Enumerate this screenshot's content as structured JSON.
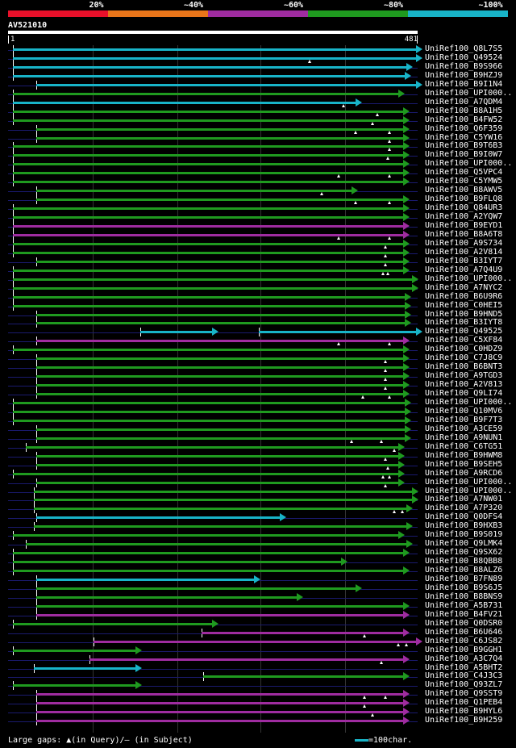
{
  "legend": {
    "segments": [
      {
        "label": "20%",
        "color": "#e8102a"
      },
      {
        "label": "~40%",
        "color": "#e8751a"
      },
      {
        "label": "~60%",
        "color": "#9f2ca0"
      },
      {
        "label": "~80%",
        "color": "#1f9a1f"
      },
      {
        "label": "~100%",
        "color": "#18b4c8"
      }
    ]
  },
  "query": {
    "name": "AV521010",
    "start_label": "1",
    "end_label": "481",
    "length": 481
  },
  "footer": {
    "gaps_text": "Large gaps: ▲(in Query)/– (in Subject)",
    "scale_text": "=100char."
  },
  "hits": [
    {
      "name": "UniRef100_Q8L7S5",
      "color": "#18b4c8",
      "segs": [
        [
          5,
          481
        ]
      ],
      "gaps": [],
      "arrow": true
    },
    {
      "name": "UniRef100_Q49524",
      "color": "#18b4c8",
      "segs": [
        [
          5,
          481
        ]
      ],
      "gaps": [
        355
      ],
      "arrow": true
    },
    {
      "name": "UniRef100_B9S966",
      "color": "#18b4c8",
      "segs": [
        [
          5,
          470
        ]
      ],
      "gaps": [],
      "arrow": true
    },
    {
      "name": "UniRef100_B9HZJ9",
      "color": "#18b4c8",
      "segs": [
        [
          5,
          468
        ]
      ],
      "gaps": [],
      "arrow": true
    },
    {
      "name": "UniRef100_B9I1N4",
      "color": "#18b4c8",
      "segs": [
        [
          32,
          481
        ]
      ],
      "gaps": [],
      "arrow": true
    },
    {
      "name": "UniRef100_UPI000..",
      "color": "#1f9a1f",
      "segs": [
        [
          5,
          460
        ]
      ],
      "gaps": [],
      "arrow": true
    },
    {
      "name": "UniRef100_A7QDM4",
      "color": "#18b4c8",
      "segs": [
        [
          5,
          410
        ]
      ],
      "gaps": [
        395
      ],
      "arrow": true
    },
    {
      "name": "UniRef100_B8A1H5",
      "color": "#1f9a1f",
      "segs": [
        [
          5,
          466
        ]
      ],
      "gaps": [
        435
      ],
      "arrow": true
    },
    {
      "name": "UniRef100_B4FW52",
      "color": "#1f9a1f",
      "segs": [
        [
          5,
          466
        ]
      ],
      "gaps": [
        430
      ],
      "arrow": true
    },
    {
      "name": "UniRef100_Q6F359",
      "color": "#1f9a1f",
      "segs": [
        [
          32,
          466
        ]
      ],
      "gaps": [
        410,
        450
      ],
      "arrow": true
    },
    {
      "name": "UniRef100_C5YW16",
      "color": "#1f9a1f",
      "segs": [
        [
          32,
          466
        ]
      ],
      "gaps": [
        450
      ],
      "arrow": true
    },
    {
      "name": "UniRef100_B9T6B3",
      "color": "#1f9a1f",
      "segs": [
        [
          5,
          466
        ]
      ],
      "gaps": [
        450
      ],
      "arrow": true
    },
    {
      "name": "UniRef100_B9I0W7",
      "color": "#1f9a1f",
      "segs": [
        [
          5,
          466
        ]
      ],
      "gaps": [
        448
      ],
      "arrow": true
    },
    {
      "name": "UniRef100_UPI000..",
      "color": "#1f9a1f",
      "segs": [
        [
          5,
          466
        ]
      ],
      "gaps": [],
      "arrow": true
    },
    {
      "name": "UniRef100_Q5VPC4",
      "color": "#1f9a1f",
      "segs": [
        [
          5,
          466
        ]
      ],
      "gaps": [
        390,
        450
      ],
      "arrow": true
    },
    {
      "name": "UniRef100_C5YMW5",
      "color": "#1f9a1f",
      "segs": [
        [
          5,
          466
        ]
      ],
      "gaps": [],
      "arrow": true
    },
    {
      "name": "UniRef100_B8AWV5",
      "color": "#1f9a1f",
      "segs": [
        [
          32,
          405
        ]
      ],
      "gaps": [
        370
      ],
      "arrow": true
    },
    {
      "name": "UniRef100_B9FLQ8",
      "color": "#1f9a1f",
      "segs": [
        [
          32,
          466
        ]
      ],
      "gaps": [
        410,
        450
      ],
      "arrow": true
    },
    {
      "name": "UniRef100_Q84UR3",
      "color": "#1f9a1f",
      "segs": [
        [
          5,
          466
        ]
      ],
      "gaps": [],
      "arrow": true
    },
    {
      "name": "UniRef100_A2YQW7",
      "color": "#1f9a1f",
      "segs": [
        [
          5,
          466
        ]
      ],
      "gaps": [],
      "arrow": true
    },
    {
      "name": "UniRef100_B9EYD1",
      "color": "#9f2ca0",
      "segs": [
        [
          5,
          466
        ]
      ],
      "gaps": [],
      "arrow": true
    },
    {
      "name": "UniRef100_B8A6T8",
      "color": "#9f2ca0",
      "segs": [
        [
          5,
          466
        ]
      ],
      "gaps": [
        390,
        450
      ],
      "arrow": true
    },
    {
      "name": "UniRef100_A9S734",
      "color": "#1f9a1f",
      "segs": [
        [
          5,
          466
        ]
      ],
      "gaps": [
        445
      ],
      "arrow": true
    },
    {
      "name": "UniRef100_A2V814",
      "color": "#1f9a1f",
      "segs": [
        [
          5,
          466
        ]
      ],
      "gaps": [
        445
      ],
      "arrow": true
    },
    {
      "name": "UniRef100_B3IYT7",
      "color": "#1f9a1f",
      "segs": [
        [
          32,
          466
        ]
      ],
      "gaps": [
        445
      ],
      "arrow": true
    },
    {
      "name": "UniRef100_A7Q4U9",
      "color": "#1f9a1f",
      "segs": [
        [
          5,
          466
        ]
      ],
      "gaps": [
        442,
        448
      ],
      "arrow": true
    },
    {
      "name": "UniRef100_UPI000..",
      "color": "#1f9a1f",
      "segs": [
        [
          5,
          476
        ]
      ],
      "gaps": [],
      "arrow": true
    },
    {
      "name": "UniRef100_A7NYC2",
      "color": "#1f9a1f",
      "segs": [
        [
          5,
          476
        ]
      ],
      "gaps": [],
      "arrow": true
    },
    {
      "name": "UniRef100_B6U9R6",
      "color": "#1f9a1f",
      "segs": [
        [
          5,
          468
        ]
      ],
      "gaps": [],
      "arrow": true
    },
    {
      "name": "UniRef100_C0HEI5",
      "color": "#1f9a1f",
      "segs": [
        [
          5,
          468
        ]
      ],
      "gaps": [],
      "arrow": true
    },
    {
      "name": "UniRef100_B9HND5",
      "color": "#1f9a1f",
      "segs": [
        [
          32,
          468
        ]
      ],
      "gaps": [],
      "arrow": true
    },
    {
      "name": "UniRef100_B3IYT8",
      "color": "#1f9a1f",
      "segs": [
        [
          32,
          468
        ]
      ],
      "gaps": [],
      "arrow": true
    },
    {
      "name": "UniRef100_Q49525",
      "color": "#18b4c8",
      "segs": [
        [
          155,
          240
        ],
        [
          295,
          481
        ]
      ],
      "gaps": [],
      "arrow": true
    },
    {
      "name": "UniRef100_C5XF84",
      "color": "#9f2ca0",
      "segs": [
        [
          32,
          466
        ]
      ],
      "gaps": [
        390,
        450
      ],
      "arrow": true
    },
    {
      "name": "UniRef100_C0HDZ9",
      "color": "#1f9a1f",
      "segs": [
        [
          5,
          466
        ]
      ],
      "gaps": [],
      "arrow": true
    },
    {
      "name": "UniRef100_C7J8C9",
      "color": "#1f9a1f",
      "segs": [
        [
          32,
          466
        ]
      ],
      "gaps": [
        445
      ],
      "arrow": true
    },
    {
      "name": "UniRef100_B6BNT3",
      "color": "#1f9a1f",
      "segs": [
        [
          32,
          466
        ]
      ],
      "gaps": [
        445
      ],
      "arrow": true
    },
    {
      "name": "UniRef100_A9TGD3",
      "color": "#1f9a1f",
      "segs": [
        [
          32,
          466
        ]
      ],
      "gaps": [
        445
      ],
      "arrow": true
    },
    {
      "name": "UniRef100_A2V813",
      "color": "#1f9a1f",
      "segs": [
        [
          32,
          466
        ]
      ],
      "gaps": [
        445
      ],
      "arrow": true
    },
    {
      "name": "UniRef100_Q9LI74",
      "color": "#1f9a1f",
      "segs": [
        [
          32,
          466
        ]
      ],
      "gaps": [
        418,
        450
      ],
      "arrow": true
    },
    {
      "name": "UniRef100_UPI000..",
      "color": "#1f9a1f",
      "segs": [
        [
          5,
          468
        ]
      ],
      "gaps": [],
      "arrow": true
    },
    {
      "name": "UniRef100_Q10MV6",
      "color": "#1f9a1f",
      "segs": [
        [
          5,
          468
        ]
      ],
      "gaps": [],
      "arrow": true
    },
    {
      "name": "UniRef100_B9F7T3",
      "color": "#1f9a1f",
      "segs": [
        [
          5,
          468
        ]
      ],
      "gaps": [],
      "arrow": true
    },
    {
      "name": "UniRef100_A3CE59",
      "color": "#1f9a1f",
      "segs": [
        [
          32,
          468
        ]
      ],
      "gaps": [],
      "arrow": true
    },
    {
      "name": "UniRef100_A9NUN1",
      "color": "#1f9a1f",
      "segs": [
        [
          32,
          468
        ]
      ],
      "gaps": [
        405,
        440
      ],
      "arrow": true
    },
    {
      "name": "UniRef100_C6TG51",
      "color": "#1f9a1f",
      "segs": [
        [
          20,
          460
        ]
      ],
      "gaps": [
        455
      ],
      "arrow": true
    },
    {
      "name": "UniRef100_B9HWM8",
      "color": "#1f9a1f",
      "segs": [
        [
          32,
          460
        ]
      ],
      "gaps": [
        445
      ],
      "arrow": true
    },
    {
      "name": "UniRef100_B9SEH5",
      "color": "#1f9a1f",
      "segs": [
        [
          32,
          460
        ]
      ],
      "gaps": [
        448
      ],
      "arrow": true
    },
    {
      "name": "UniRef100_A9RCD6",
      "color": "#1f9a1f",
      "segs": [
        [
          5,
          460
        ]
      ],
      "gaps": [
        442,
        450
      ],
      "arrow": true
    },
    {
      "name": "UniRef100_UPI000..",
      "color": "#1f9a1f",
      "segs": [
        [
          32,
          460
        ]
      ],
      "gaps": [
        445
      ],
      "arrow": true
    },
    {
      "name": "UniRef100_UPI000..",
      "color": "#1f9a1f",
      "segs": [
        [
          30,
          476
        ]
      ],
      "gaps": [],
      "arrow": true
    },
    {
      "name": "UniRef100_A7NW01",
      "color": "#1f9a1f",
      "segs": [
        [
          30,
          476
        ]
      ],
      "gaps": [],
      "arrow": true
    },
    {
      "name": "UniRef100_A7P320",
      "color": "#1f9a1f",
      "segs": [
        [
          30,
          470
        ]
      ],
      "gaps": [
        455,
        465
      ],
      "arrow": true
    },
    {
      "name": "UniRef100_Q0DFS4",
      "color": "#18b4c8",
      "segs": [
        [
          32,
          320
        ]
      ],
      "gaps": [],
      "arrow": true
    },
    {
      "name": "UniRef100_B9HXB3",
      "color": "#1f9a1f",
      "segs": [
        [
          30,
          470
        ]
      ],
      "gaps": [],
      "arrow": true
    },
    {
      "name": "UniRef100_B9S019",
      "color": "#1f9a1f",
      "segs": [
        [
          5,
          460
        ]
      ],
      "gaps": [],
      "arrow": true
    },
    {
      "name": "UniRef100_Q9LMK4",
      "color": "#1f9a1f",
      "segs": [
        [
          20,
          470
        ]
      ],
      "gaps": [],
      "arrow": true
    },
    {
      "name": "UniRef100_Q9SX62",
      "color": "#1f9a1f",
      "segs": [
        [
          5,
          466
        ]
      ],
      "gaps": [],
      "arrow": true
    },
    {
      "name": "UniRef100_B8QBB8",
      "color": "#1f9a1f",
      "segs": [
        [
          5,
          392
        ]
      ],
      "gaps": [],
      "arrow": true
    },
    {
      "name": "UniRef100_B8ALZ6",
      "color": "#1f9a1f",
      "segs": [
        [
          5,
          466
        ]
      ],
      "gaps": [],
      "arrow": true
    },
    {
      "name": "UniRef100_B7FN89",
      "color": "#18b4c8",
      "segs": [
        [
          32,
          290
        ]
      ],
      "gaps": [],
      "arrow": true
    },
    {
      "name": "UniRef100_B9S6J5",
      "color": "#1f9a1f",
      "segs": [
        [
          32,
          410
        ]
      ],
      "gaps": [],
      "arrow": true
    },
    {
      "name": "UniRef100_B8BNS9",
      "color": "#1f9a1f",
      "segs": [
        [
          32,
          340
        ]
      ],
      "gaps": [],
      "arrow": true
    },
    {
      "name": "UniRef100_A5B731",
      "color": "#1f9a1f",
      "segs": [
        [
          32,
          466
        ]
      ],
      "gaps": [],
      "arrow": true
    },
    {
      "name": "UniRef100_B4FV21",
      "color": "#9f2ca0",
      "segs": [
        [
          32,
          466
        ]
      ],
      "gaps": [],
      "arrow": true
    },
    {
      "name": "UniRef100_Q0DSR0",
      "color": "#1f9a1f",
      "segs": [
        [
          5,
          240
        ]
      ],
      "gaps": [],
      "arrow": true
    },
    {
      "name": "UniRef100_B6U646",
      "color": "#9f2ca0",
      "segs": [
        [
          228,
          466
        ]
      ],
      "gaps": [
        420
      ],
      "arrow": true
    },
    {
      "name": "UniRef100_C6JS82",
      "color": "#9f2ca0",
      "segs": [
        [
          100,
          481
        ]
      ],
      "gaps": [
        460,
        470
      ],
      "arrow": true
    },
    {
      "name": "UniRef100_B9GGH1",
      "color": "#1f9a1f",
      "segs": [
        [
          5,
          150
        ]
      ],
      "gaps": [],
      "arrow": true
    },
    {
      "name": "UniRef100_A3C7Q4",
      "color": "#9f2ca0",
      "segs": [
        [
          95,
          466
        ]
      ],
      "gaps": [
        440
      ],
      "arrow": true
    },
    {
      "name": "UniRef100_A5BHT2",
      "color": "#18b4c8",
      "segs": [
        [
          30,
          150
        ]
      ],
      "gaps": [],
      "arrow": true
    },
    {
      "name": "UniRef100_C4J3C3",
      "color": "#1f9a1f",
      "segs": [
        [
          230,
          466
        ]
      ],
      "gaps": [],
      "arrow": true
    },
    {
      "name": "UniRef100_Q93ZL7",
      "color": "#1f9a1f",
      "segs": [
        [
          5,
          150
        ]
      ],
      "gaps": [],
      "arrow": true
    },
    {
      "name": "UniRef100_Q9SST9",
      "color": "#9f2ca0",
      "segs": [
        [
          32,
          466
        ]
      ],
      "gaps": [
        420,
        445
      ],
      "arrow": true
    },
    {
      "name": "UniRef100_Q1PEB4",
      "color": "#9f2ca0",
      "segs": [
        [
          32,
          466
        ]
      ],
      "gaps": [
        420
      ],
      "arrow": true
    },
    {
      "name": "UniRef100_B9HYL6",
      "color": "#9f2ca0",
      "segs": [
        [
          32,
          466
        ]
      ],
      "gaps": [
        430
      ],
      "arrow": true
    },
    {
      "name": "UniRef100_B9H259",
      "color": "#9f2ca0",
      "segs": [
        [
          32,
          466
        ]
      ],
      "gaps": [],
      "arrow": true
    }
  ]
}
